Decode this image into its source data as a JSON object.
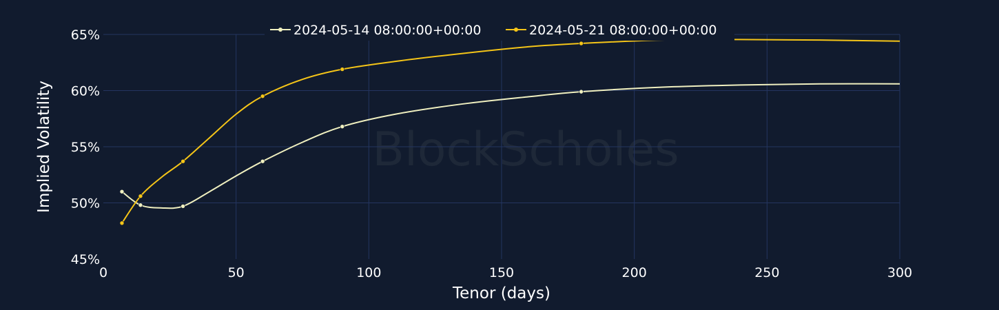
{
  "watermark": "BlockScholes",
  "chart_data": {
    "type": "line",
    "title": "",
    "xlabel": "Tenor (days)",
    "ylabel": "Implied Volatility",
    "xlim": [
      0,
      300
    ],
    "ylim": [
      45,
      65
    ],
    "x_ticks": [
      0,
      50,
      100,
      150,
      200,
      250,
      300
    ],
    "y_ticks": [
      45,
      50,
      55,
      60,
      65
    ],
    "y_tick_labels": [
      "45%",
      "50%",
      "55%",
      "60%",
      "65%"
    ],
    "grid": true,
    "legend_position": "top",
    "series": [
      {
        "name": "2024-05-14 08:00:00+00:00",
        "color": "#f0f0c0",
        "points": [
          [
            7,
            51.0
          ],
          [
            14,
            49.8
          ],
          [
            30,
            49.7
          ],
          [
            60,
            53.7
          ],
          [
            90,
            56.8
          ],
          [
            180,
            59.9
          ]
        ],
        "curve": [
          [
            7,
            51.0
          ],
          [
            14,
            49.8
          ],
          [
            22,
            49.55
          ],
          [
            30,
            49.7
          ],
          [
            40,
            51.0
          ],
          [
            50,
            52.4
          ],
          [
            60,
            53.7
          ],
          [
            75,
            55.4
          ],
          [
            90,
            56.8
          ],
          [
            110,
            57.9
          ],
          [
            135,
            58.8
          ],
          [
            160,
            59.45
          ],
          [
            180,
            59.9
          ],
          [
            210,
            60.3
          ],
          [
            240,
            60.5
          ],
          [
            270,
            60.6
          ],
          [
            300,
            60.6
          ]
        ]
      },
      {
        "name": "2024-05-21 08:00:00+00:00",
        "color": "#f5c518",
        "points": [
          [
            7,
            48.2
          ],
          [
            14,
            50.6
          ],
          [
            30,
            53.7
          ],
          [
            60,
            59.5
          ],
          [
            90,
            61.9
          ],
          [
            180,
            64.2
          ]
        ],
        "curve": [
          [
            7,
            48.2
          ],
          [
            14,
            50.6
          ],
          [
            22,
            52.3
          ],
          [
            30,
            53.7
          ],
          [
            40,
            55.8
          ],
          [
            50,
            57.9
          ],
          [
            60,
            59.5
          ],
          [
            75,
            61.0
          ],
          [
            90,
            61.9
          ],
          [
            110,
            62.6
          ],
          [
            135,
            63.3
          ],
          [
            160,
            63.9
          ],
          [
            180,
            64.2
          ],
          [
            210,
            64.5
          ],
          [
            240,
            64.55
          ],
          [
            270,
            64.5
          ],
          [
            300,
            64.4
          ]
        ]
      }
    ]
  }
}
